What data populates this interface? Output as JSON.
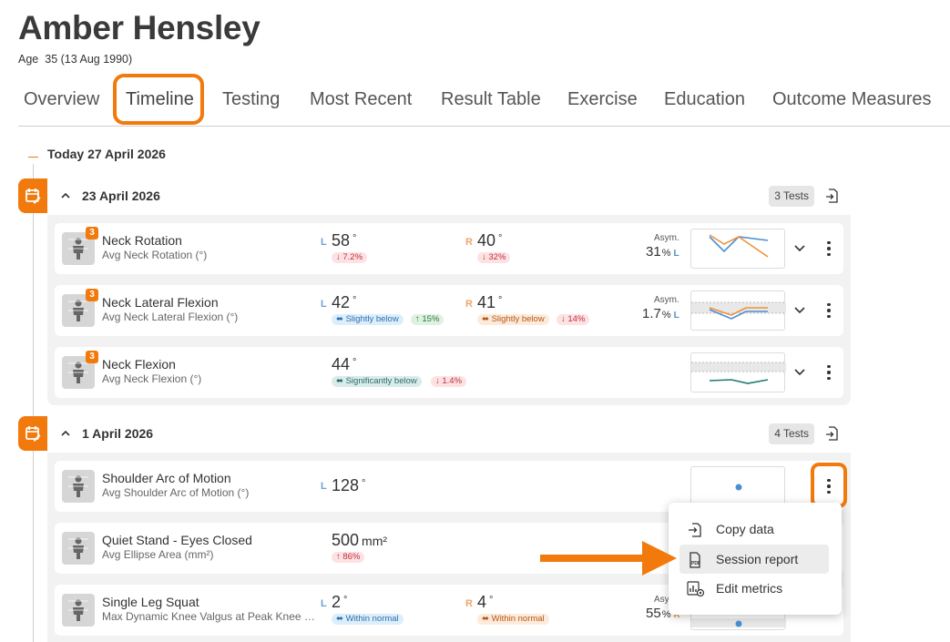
{
  "patient": {
    "name": "Amber Hensley",
    "age_label": "Age",
    "age_value": "35 (13 Aug 1990)"
  },
  "tabs": [
    {
      "label": "Overview"
    },
    {
      "label": "Timeline",
      "active": true
    },
    {
      "label": "Testing"
    },
    {
      "label": "Most Recent"
    },
    {
      "label": "Result Table"
    },
    {
      "label": "Exercise"
    },
    {
      "label": "Education"
    },
    {
      "label": "Outcome Measures"
    }
  ],
  "timeline": {
    "today_label": "Today 27 April 2026",
    "groups": [
      {
        "date": "23 April 2026",
        "tests_count": "3 Tests",
        "rows": [
          {
            "badge": "3",
            "name": "Neck Rotation",
            "sub": "Avg Neck Rotation (°)",
            "left": {
              "side": "L",
              "value": "58",
              "unit": "°",
              "chips": [
                {
                  "text": "↓ 7.2%",
                  "color": "red"
                }
              ]
            },
            "right": {
              "side": "R",
              "value": "40",
              "unit": "°",
              "chips": [
                {
                  "text": "↓ 32%",
                  "color": "red"
                }
              ]
            },
            "asym": {
              "label": "Asym.",
              "value": "31",
              "pct": "%",
              "side": "L"
            }
          },
          {
            "badge": "3",
            "name": "Neck Lateral Flexion",
            "sub": "Avg Neck Lateral Flexion (°)",
            "left": {
              "side": "L",
              "value": "42",
              "unit": "°",
              "chips": [
                {
                  "text": "⬌ Slightly below",
                  "color": "blue"
                },
                {
                  "text": "↑ 15%",
                  "color": "green"
                }
              ]
            },
            "right": {
              "side": "R",
              "value": "41",
              "unit": "°",
              "chips": [
                {
                  "text": "⬌ Slightly below",
                  "color": "orange"
                },
                {
                  "text": "↓ 14%",
                  "color": "red"
                }
              ]
            },
            "asym": {
              "label": "Asym.",
              "value": "1.7",
              "pct": "%",
              "side": "L"
            }
          },
          {
            "badge": "3",
            "name": "Neck Flexion",
            "sub": "Avg Neck Flexion (°)",
            "center": {
              "value": "44",
              "unit": "°",
              "chips": [
                {
                  "text": "⬌ Significantly below",
                  "color": "teal"
                },
                {
                  "text": "↓ 1.4%",
                  "color": "red"
                }
              ]
            }
          }
        ]
      },
      {
        "date": "1 April 2026",
        "tests_count": "4 Tests",
        "rows": [
          {
            "name": "Shoulder Arc of Motion",
            "sub": "Avg Shoulder Arc of Motion (°)",
            "left": {
              "side": "L",
              "value": "128",
              "unit": "°"
            }
          },
          {
            "name": "Quiet Stand - Eyes Closed",
            "sub": "Avg Ellipse Area (mm²)",
            "center": {
              "value": "500",
              "unit": "mm²",
              "chips": [
                {
                  "text": "↑ 86%",
                  "color": "red"
                }
              ]
            }
          },
          {
            "name": "Single Leg Squat",
            "sub": "Max Dynamic Knee Valgus at Peak Knee Fl...",
            "left": {
              "side": "L",
              "value": "2",
              "unit": "°",
              "chips": [
                {
                  "text": "⬌ Within normal",
                  "color": "blue"
                }
              ]
            },
            "right": {
              "side": "R",
              "value": "4",
              "unit": "°",
              "chips": [
                {
                  "text": "⬌ Within normal",
                  "color": "orange"
                }
              ]
            },
            "asym": {
              "label": "Asy",
              "value": "55",
              "pct": "%",
              "side": "R"
            }
          }
        ]
      }
    ]
  },
  "context_menu": {
    "items": [
      {
        "label": "Copy data",
        "icon": "copy-data-icon"
      },
      {
        "label": "Session report",
        "icon": "pdf-icon",
        "active": true
      },
      {
        "label": "Edit metrics",
        "icon": "edit-metrics-icon"
      }
    ]
  },
  "colors": {
    "accent": "#f27a0d",
    "left_series": "#4a8fd4",
    "right_series": "#f0913a",
    "trend_teal": "#1f7a72"
  }
}
